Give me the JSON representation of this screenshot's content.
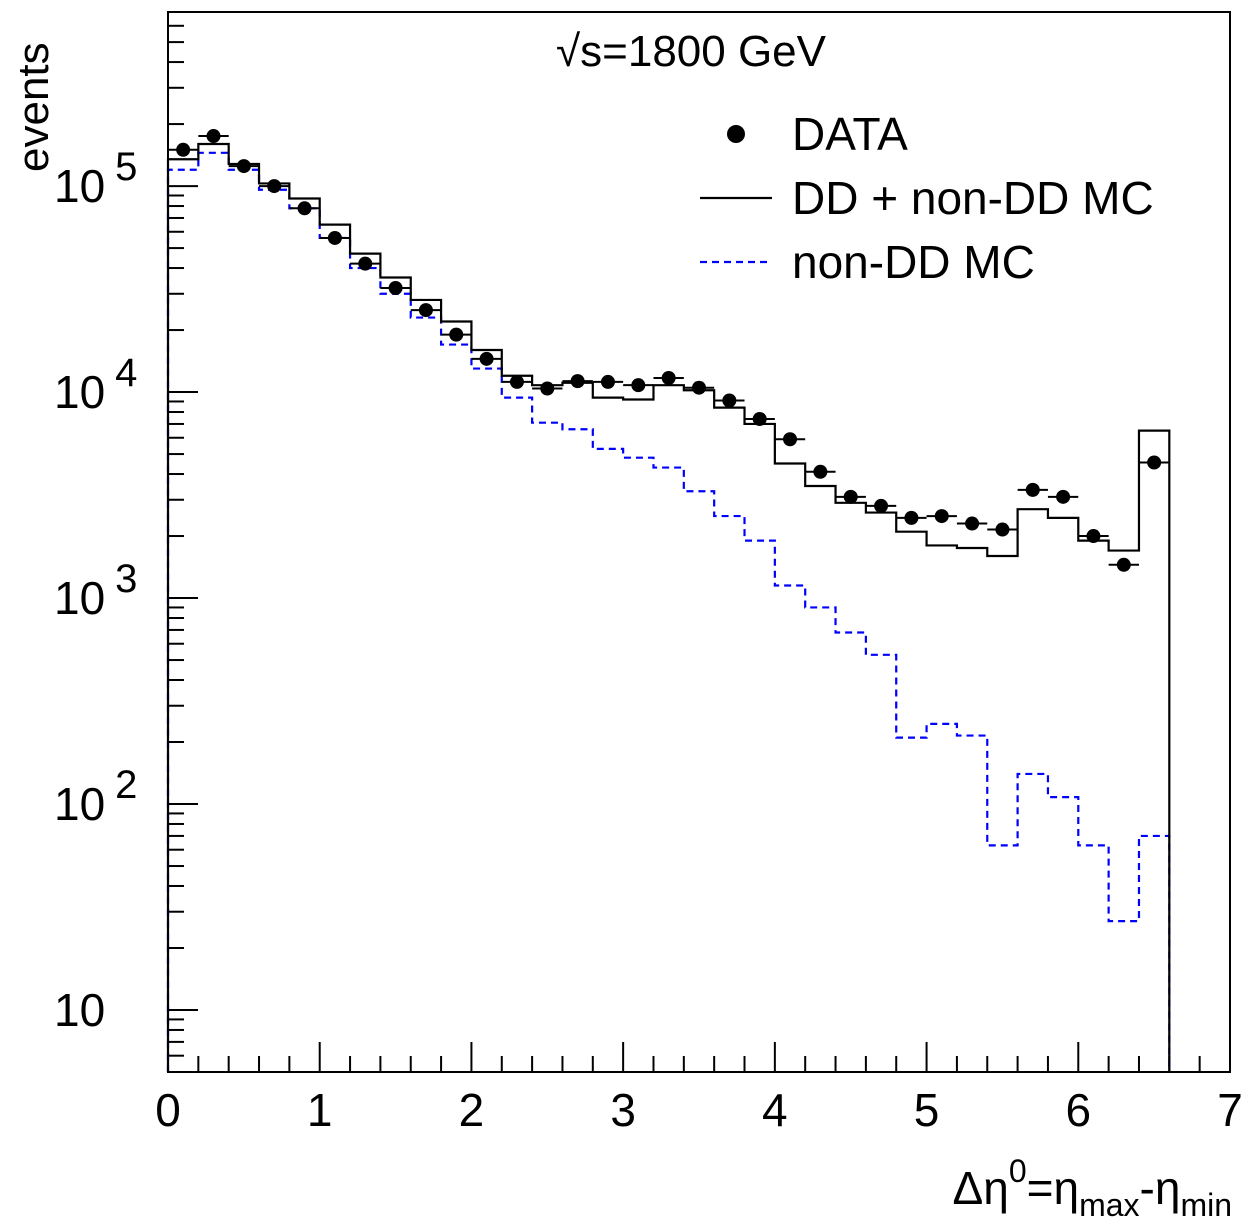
{
  "chart_data": {
    "type": "histogram",
    "annotation": "√s=1800 GeV",
    "xlabel": {
      "base": "Δη",
      "sup": "0",
      "eq": "=η",
      "sub1": "max",
      "mid": "-η",
      "sub2": "min"
    },
    "ylabel": "events",
    "xlim": [
      0,
      7
    ],
    "ylim": [
      5,
      700000
    ],
    "log_y": true,
    "x_ticks": [
      "0",
      "1",
      "2",
      "3",
      "4",
      "5",
      "6",
      "7"
    ],
    "y_ticks": [
      {
        "value": 10,
        "base": "10",
        "exp": ""
      },
      {
        "value": 100,
        "base": "10",
        "exp": "2"
      },
      {
        "value": 1000,
        "base": "10",
        "exp": "3"
      },
      {
        "value": 10000,
        "base": "10",
        "exp": "4"
      },
      {
        "value": 100000,
        "base": "10",
        "exp": "5"
      }
    ],
    "legend": {
      "position": "top-right",
      "entries": [
        {
          "label": "DATA",
          "style": "marker",
          "color": "#000000"
        },
        {
          "label": "DD + non-DD MC",
          "style": "solid",
          "color": "#000000"
        },
        {
          "label": "non-DD MC",
          "style": "dashed",
          "color": "#0000ff"
        }
      ]
    },
    "bin_edges": [
      0,
      0.2,
      0.4,
      0.6,
      0.8,
      1.0,
      1.2,
      1.4,
      1.6,
      1.8,
      2.0,
      2.2,
      2.4,
      2.6,
      2.8,
      3.0,
      3.2,
      3.4,
      3.6,
      3.8,
      4.0,
      4.2,
      4.4,
      4.6,
      4.8,
      5.0,
      5.2,
      5.4,
      5.6,
      5.8,
      6.0,
      6.2,
      6.4,
      6.6
    ],
    "series": [
      {
        "name": "DATA",
        "kind": "points",
        "values": [
          150000,
          175000,
          125000,
          100000,
          78000,
          56000,
          42000,
          32000,
          25000,
          19000,
          14500,
          11200,
          10400,
          11300,
          11200,
          10800,
          11700,
          10500,
          9100,
          7400,
          5900,
          4100,
          3100,
          2800,
          2450,
          2500,
          2300,
          2150,
          3350,
          3100,
          2000,
          1450,
          4550
        ]
      },
      {
        "name": "DD + non-DD MC",
        "kind": "step",
        "values": [
          135000,
          160000,
          128000,
          103000,
          87000,
          65000,
          47000,
          36000,
          28000,
          22000,
          16000,
          12000,
          10800,
          11100,
          9400,
          9200,
          10800,
          10200,
          8400,
          7000,
          4500,
          3500,
          2900,
          2600,
          2100,
          1800,
          1750,
          1600,
          2700,
          2450,
          1900,
          1700,
          6500
        ]
      },
      {
        "name": "non-DD MC",
        "kind": "step",
        "values": [
          120000,
          145000,
          120000,
          96000,
          78000,
          56000,
          40000,
          30000,
          23000,
          17000,
          13000,
          9400,
          7100,
          6600,
          5300,
          4800,
          4300,
          3300,
          2500,
          1900,
          1150,
          900,
          680,
          530,
          210,
          245,
          215,
          63,
          140,
          108,
          63,
          27,
          70
        ]
      }
    ]
  }
}
